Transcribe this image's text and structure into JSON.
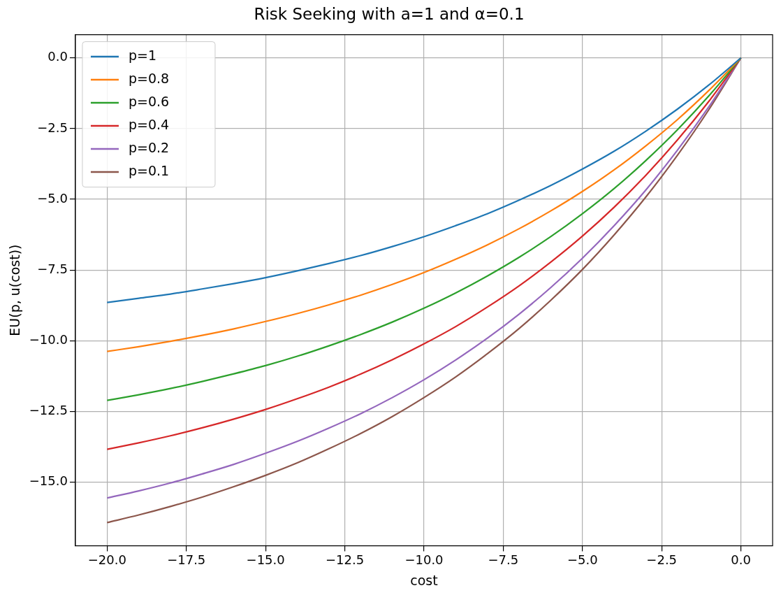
{
  "chart_data": {
    "type": "line",
    "title": "Risk Seeking with a=1 and α=0.1",
    "xlabel": "cost",
    "ylabel": "EU(p, u(cost))",
    "x": [
      -20,
      -19,
      -18,
      -17,
      -16,
      -15,
      -14,
      -13,
      -12,
      -11,
      -10,
      -9,
      -8,
      -7,
      -6,
      -5,
      -4,
      -3,
      -2,
      -1,
      0
    ],
    "series": [
      {
        "name": "p=1",
        "color": "#1f77b4",
        "values": [
          -8.65,
          -8.5,
          -8.35,
          -8.17,
          -7.98,
          -7.77,
          -7.53,
          -7.27,
          -6.99,
          -6.67,
          -6.32,
          -5.93,
          -5.51,
          -5.03,
          -4.51,
          -3.93,
          -3.3,
          -2.59,
          -1.81,
          -0.95,
          0
        ]
      },
      {
        "name": "p=0.8",
        "color": "#ff7f0e",
        "values": [
          -10.38,
          -10.21,
          -10.02,
          -9.81,
          -9.58,
          -9.32,
          -9.04,
          -8.73,
          -8.39,
          -8.01,
          -7.59,
          -7.12,
          -6.61,
          -6.04,
          -5.41,
          -4.72,
          -3.96,
          -3.11,
          -2.18,
          -1.14,
          0
        ]
      },
      {
        "name": "p=0.6",
        "color": "#2ca02c",
        "values": [
          -12.11,
          -11.91,
          -11.69,
          -11.44,
          -11.17,
          -10.88,
          -10.55,
          -10.18,
          -9.78,
          -9.34,
          -8.85,
          -8.31,
          -7.71,
          -7.05,
          -6.32,
          -5.51,
          -4.62,
          -3.63,
          -2.54,
          -1.33,
          0
        ]
      },
      {
        "name": "p=0.4",
        "color": "#d62728",
        "values": [
          -13.84,
          -13.61,
          -13.36,
          -13.08,
          -12.77,
          -12.43,
          -12.05,
          -11.64,
          -11.18,
          -10.67,
          -10.11,
          -9.5,
          -8.81,
          -8.06,
          -7.22,
          -6.3,
          -5.28,
          -4.15,
          -2.9,
          -1.52,
          0
        ]
      },
      {
        "name": "p=0.2",
        "color": "#9467bd",
        "values": [
          -15.56,
          -15.31,
          -15.03,
          -14.71,
          -14.37,
          -13.98,
          -13.56,
          -13.09,
          -12.58,
          -12.01,
          -11.38,
          -10.68,
          -9.91,
          -9.06,
          -8.12,
          -7.08,
          -5.93,
          -4.67,
          -3.26,
          -1.71,
          0
        ]
      },
      {
        "name": "p=0.1",
        "color": "#8c564b",
        "values": [
          -16.43,
          -16.16,
          -15.86,
          -15.53,
          -15.16,
          -14.76,
          -14.32,
          -13.82,
          -13.28,
          -12.68,
          -12.01,
          -11.28,
          -10.46,
          -9.57,
          -8.57,
          -7.48,
          -6.26,
          -4.92,
          -3.44,
          -1.81,
          0
        ]
      }
    ],
    "xlim": [
      -21,
      1
    ],
    "ylim": [
      -17.25,
      0.82
    ],
    "xticks": [
      {
        "value": -20,
        "label": "−20.0"
      },
      {
        "value": -17.5,
        "label": "−17.5"
      },
      {
        "value": -15,
        "label": "−15.0"
      },
      {
        "value": -12.5,
        "label": "−12.5"
      },
      {
        "value": -10,
        "label": "−10.0"
      },
      {
        "value": -7.5,
        "label": "−7.5"
      },
      {
        "value": -5,
        "label": "−5.0"
      },
      {
        "value": -2.5,
        "label": "−2.5"
      },
      {
        "value": 0,
        "label": "0.0"
      }
    ],
    "yticks": [
      {
        "value": -15,
        "label": "−15.0"
      },
      {
        "value": -12.5,
        "label": "−12.5"
      },
      {
        "value": -10,
        "label": "−10.0"
      },
      {
        "value": -7.5,
        "label": "−7.5"
      },
      {
        "value": -5,
        "label": "−5.0"
      },
      {
        "value": -2.5,
        "label": "−2.5"
      },
      {
        "value": 0,
        "label": "0.0"
      }
    ],
    "grid": true,
    "legend": "top left",
    "marker": "none",
    "line_style": "solid"
  }
}
